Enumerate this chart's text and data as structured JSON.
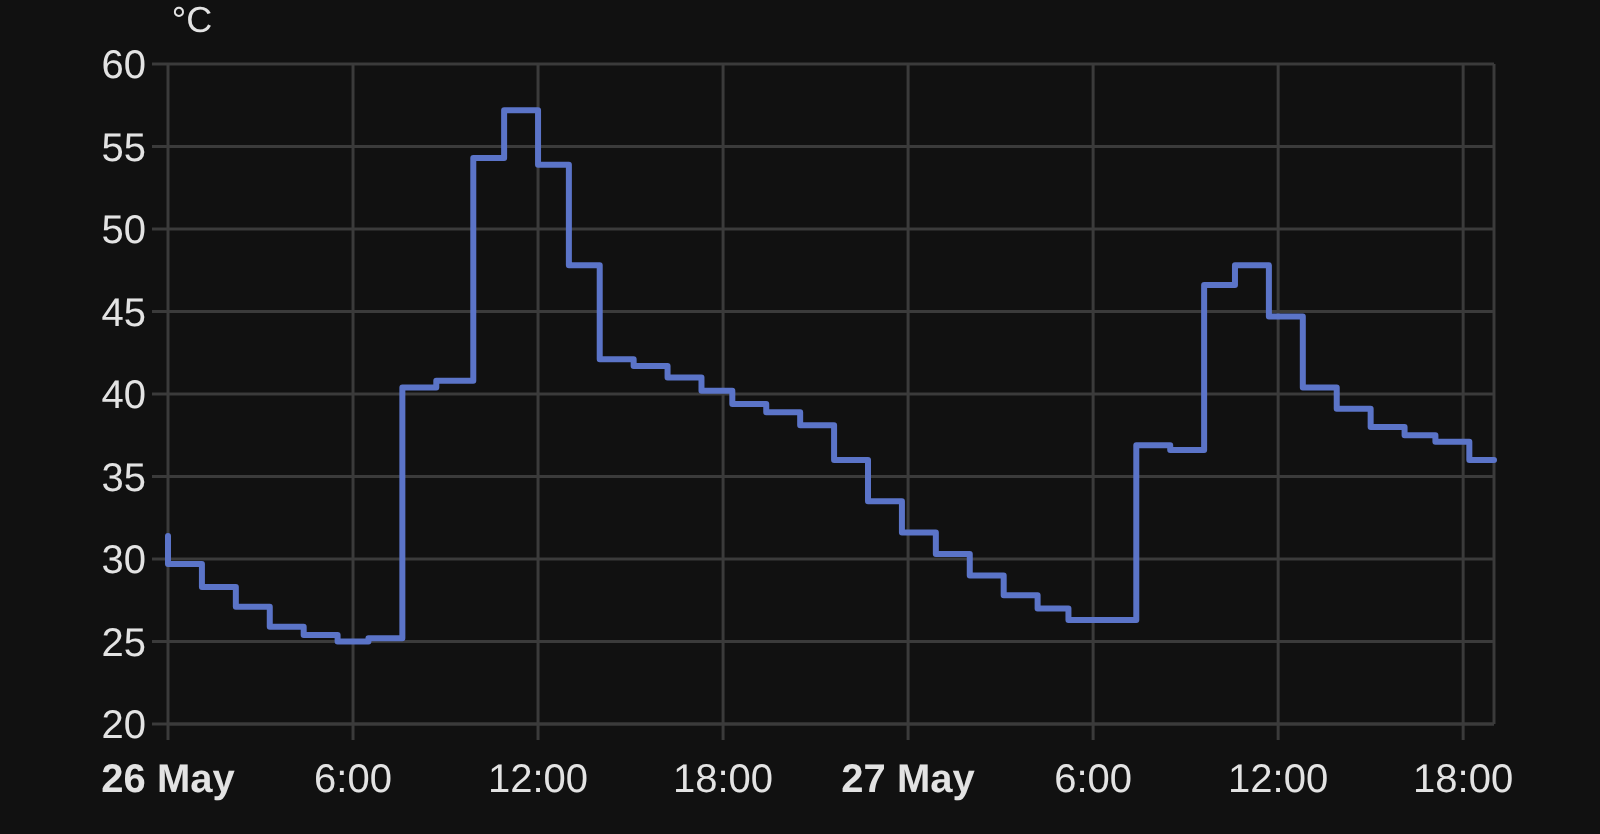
{
  "chart_data": {
    "type": "step",
    "ylabel": "°C",
    "x": [
      "--05-26T00:00",
      "--05-26T00:00",
      "--05-26T01:06",
      "--05-26T02:12",
      "--05-26T03:18",
      "--05-26T04:24",
      "--05-26T05:30",
      "--05-26T06:30",
      "--05-26T07:36",
      "--05-26T08:42",
      "--05-26T09:54",
      "--05-26T10:54",
      "--05-26T12:00",
      "--05-26T13:00",
      "--05-26T14:00",
      "--05-26T15:06",
      "--05-26T16:12",
      "--05-26T17:18",
      "--05-26T18:18",
      "--05-26T19:24",
      "--05-26T20:30",
      "--05-26T21:36",
      "--05-26T22:42",
      "--05-26T23:48",
      "--05-27T00:54",
      "--05-27T02:00",
      "--05-27T03:06",
      "--05-27T04:12",
      "--05-27T05:12",
      "--05-27T07:24",
      "--05-27T08:30",
      "--05-27T09:36",
      "--05-27T10:36",
      "--05-27T11:42",
      "--05-27T12:48",
      "--05-27T13:54",
      "--05-27T15:00",
      "--05-27T16:06",
      "--05-27T17:06",
      "--05-27T18:12",
      "--05-27T19:00"
    ],
    "values": [
      31.4,
      29.7,
      28.3,
      27.1,
      25.9,
      25.4,
      25.0,
      25.2,
      40.4,
      40.8,
      54.3,
      57.2,
      53.9,
      47.8,
      42.1,
      41.7,
      41.0,
      40.2,
      39.4,
      38.9,
      38.1,
      36.0,
      33.5,
      31.6,
      30.3,
      29.0,
      27.8,
      27.0,
      26.3,
      36.9,
      36.6,
      46.6,
      47.8,
      44.7,
      40.4,
      39.1,
      38.0,
      37.5,
      37.1,
      36.0,
      36.0
    ],
    "color": "#5b74c8",
    "xlim": [
      "--05-26T00:00",
      "--05-27T19:00"
    ],
    "xticks": [
      {
        "value": "--05-26T00:00",
        "label": "26 May"
      },
      {
        "value": "--05-26T06:00",
        "label": "6:00"
      },
      {
        "value": "--05-26T12:00",
        "label": "12:00"
      },
      {
        "value": "--05-26T18:00",
        "label": "18:00"
      },
      {
        "value": "--05-27T00:00",
        "label": "27 May"
      },
      {
        "value": "--05-27T06:00",
        "label": "6:00"
      },
      {
        "value": "--05-27T12:00",
        "label": "12:00"
      },
      {
        "value": "--05-27T18:00",
        "label": "18:00"
      }
    ],
    "ylim": [
      20,
      60
    ],
    "yticks": [
      20,
      25,
      30,
      35,
      40,
      45,
      50,
      55,
      60
    ],
    "grid": true
  }
}
